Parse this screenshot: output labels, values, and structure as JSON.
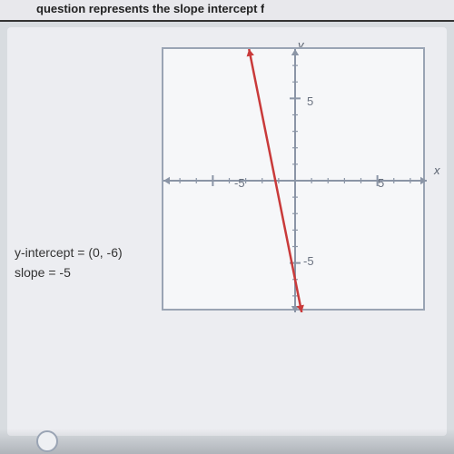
{
  "header": {
    "fragment": "question represents the slope intercept f"
  },
  "labels": {
    "y_intercept": "y-intercept = (0, -6)",
    "slope": "slope = -5"
  },
  "graph": {
    "type": "line",
    "xlabel": "x",
    "ylabel": "y",
    "xlim": [
      -8,
      8
    ],
    "ylim": [
      -8,
      8
    ],
    "tick_step": 1,
    "major_ticks": {
      "neg": "-5",
      "pos5": "5",
      "neg5y": "-5"
    },
    "axis_color": "#8b95a6",
    "grid_tick_color": "#8b95a6",
    "background_color": "#f6f7f9",
    "line_color": "#c93a3a",
    "line_width": 2.5,
    "slope": -5,
    "y_intercept": -6,
    "arrow_size": 7
  },
  "colors": {
    "page_bg": "#d8dce0",
    "panel_bg": "#ecedf1",
    "border": "#9aa4b4",
    "text": "#333333"
  },
  "fonts": {
    "body_size": 14,
    "label_size": 13
  }
}
